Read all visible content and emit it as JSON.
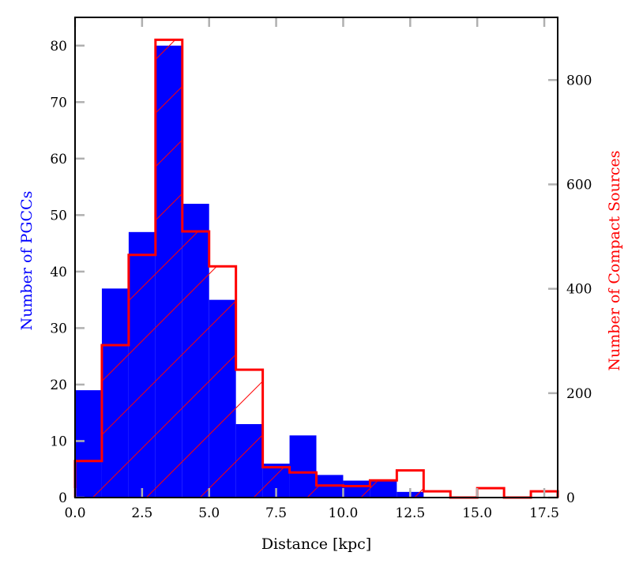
{
  "chart_data": {
    "type": "bar",
    "title": "",
    "xlabel": "Distance [kpc]",
    "ylabel_left": "Number of PGCCs",
    "ylabel_right": "Number of Compact Sources",
    "xlim": [
      0,
      18
    ],
    "ylim_left": [
      0,
      85
    ],
    "ylim_right": [
      0,
      920
    ],
    "x_ticks": [
      0.0,
      2.5,
      5.0,
      7.5,
      10.0,
      12.5,
      15.0,
      17.5
    ],
    "x_tick_labels": [
      "0.0",
      "2.5",
      "5.0",
      "7.5",
      "10.0",
      "12.5",
      "15.0",
      "17.5"
    ],
    "y_left_ticks": [
      0,
      10,
      20,
      30,
      40,
      50,
      60,
      70,
      80
    ],
    "y_left_tick_labels": [
      "0",
      "10",
      "20",
      "30",
      "40",
      "50",
      "60",
      "70",
      "80"
    ],
    "y_right_ticks": [
      0,
      200,
      400,
      600,
      800
    ],
    "y_right_tick_labels": [
      "0",
      "200",
      "400",
      "600",
      "800"
    ],
    "bin_edges": [
      0,
      1,
      2,
      3,
      4,
      5,
      6,
      7,
      8,
      9,
      10,
      11,
      12,
      13,
      14,
      15,
      16,
      17,
      18
    ],
    "series": [
      {
        "name": "PGCCs",
        "axis": "left",
        "style": "filled",
        "color": "#0000ff",
        "values": [
          19,
          37,
          47,
          80,
          52,
          35,
          13,
          6,
          11,
          4,
          3,
          3,
          1,
          0,
          0,
          0,
          0,
          0
        ]
      },
      {
        "name": "Compact Sources",
        "axis": "right",
        "style": "hatched-step",
        "color": "#ff0000",
        "values": [
          70,
          292,
          465,
          877,
          510,
          443,
          245,
          58,
          48,
          23,
          22,
          33,
          52,
          12,
          0,
          18,
          0,
          12
        ]
      }
    ],
    "grid": false,
    "legend": "none"
  }
}
